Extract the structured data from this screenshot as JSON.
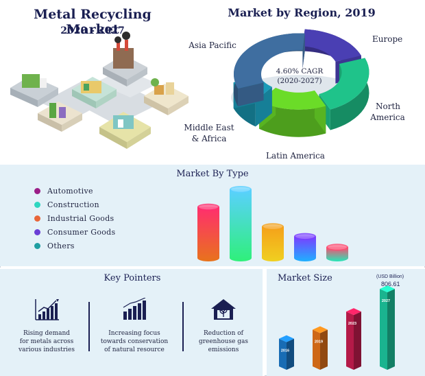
{
  "header": {
    "title": "Metal Recycling Market",
    "period": "2020 - 2027"
  },
  "colors": {
    "navy": "#1a1f52",
    "panel_bg": "#e4f1f8"
  },
  "chart_data": [
    {
      "type": "pie",
      "title": "Market by Region, 2019",
      "center_label": [
        "4.60% CAGR",
        "(2020-2027)"
      ],
      "slices": [
        {
          "name": "Europe",
          "value": 18,
          "color": "#4a3fb3"
        },
        {
          "name": "North America",
          "value": 24,
          "color": "#1fc38a"
        },
        {
          "name": "Latin America",
          "value": 17,
          "color": "#6bdc28"
        },
        {
          "name": "Middle East & Africa",
          "value": 9,
          "color": "#1b9bb8"
        },
        {
          "name": "Asia Pacific",
          "value": 32,
          "color": "#3f6ea0"
        }
      ],
      "labels": {
        "europe": "Europe",
        "north_america_1": "North",
        "north_america_2": "America",
        "latin_america": "Latin America",
        "mea_1": "Middle East",
        "mea_2": "& Africa",
        "asia_pacific": "Asia Pacific"
      }
    },
    {
      "type": "bar",
      "title": "Market By Type",
      "categories": [
        "Automotive",
        "Construction",
        "Industrial Goods",
        "Consumer Goods",
        "Others"
      ],
      "values": [
        52,
        70,
        32,
        22,
        11
      ],
      "colors": [
        "#9b1e87",
        "#2ed6c0",
        "#e8663a",
        "#6a3fd6",
        "#1f9ea2"
      ],
      "legend": "left"
    },
    {
      "type": "bar",
      "title": "Market Size",
      "categories": [
        "2016",
        "2019",
        "2023",
        "2027"
      ],
      "values": [
        310,
        400,
        580,
        806.61
      ],
      "unit_label": "(USD Billion)",
      "value_label": "806.61",
      "colors": [
        "#1c7fd4",
        "#f27a1a",
        "#d41e55",
        "#1fd4a8"
      ]
    }
  ],
  "key_pointers": {
    "title": "Key Pointers",
    "items": [
      {
        "icon": "bar-chart-growth-icon",
        "lines": [
          "Rising demand",
          "for metals across",
          "various industries"
        ]
      },
      {
        "icon": "bar-chart-rise-icon",
        "lines": [
          "Increasing focus",
          "towards conservation",
          "of natural resource"
        ]
      },
      {
        "icon": "green-house-icon",
        "lines": [
          "Reduction of",
          "greenhouse gas",
          "emissions"
        ]
      }
    ]
  }
}
